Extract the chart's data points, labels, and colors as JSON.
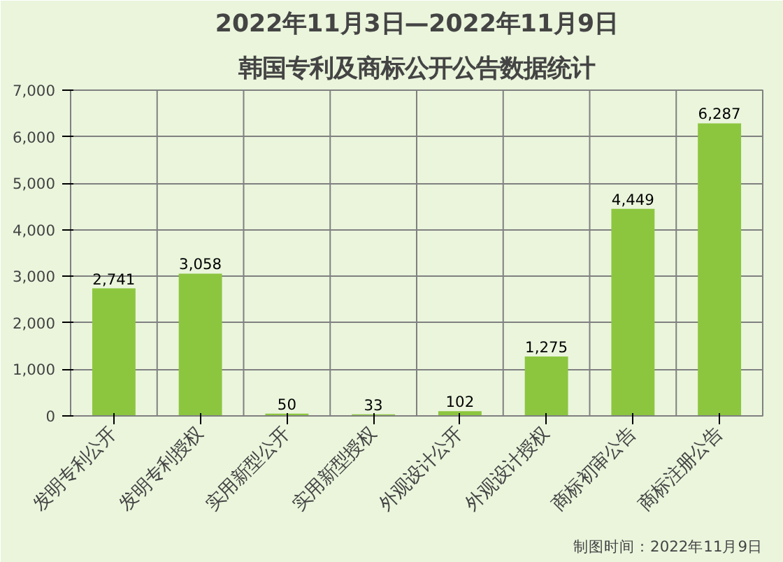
{
  "chart_data": {
    "type": "bar",
    "title": "2022年11月3日—2022年11月9日",
    "subtitle": "韩国专利及商标公开公告数据统计",
    "categories": [
      "发明专利公开",
      "发明专利授权",
      "实用新型公开",
      "实用新型授权",
      "外观设计公开",
      "外观设计授权",
      "商标初审公告",
      "商标注册公告"
    ],
    "values": [
      2741,
      3058,
      50,
      33,
      102,
      1275,
      4449,
      6287
    ],
    "color": "#8cc63f",
    "ylim": [
      0,
      7000
    ],
    "yticks": [
      {
        "value": 0,
        "label": "0"
      },
      {
        "value": 1000,
        "label": "1,000"
      },
      {
        "value": 2000,
        "label": "2,000"
      },
      {
        "value": 3000,
        "label": "3,000"
      },
      {
        "value": 4000,
        "label": "4,000"
      },
      {
        "value": 5000,
        "label": "5,000"
      },
      {
        "value": 6000,
        "label": "6,000"
      },
      {
        "value": 7000,
        "label": "7,000"
      }
    ],
    "grid": true,
    "value_labels": [
      "2,741",
      "3,058",
      "50",
      "33",
      "102",
      "1,275",
      "4,449",
      "6,287"
    ],
    "annotations": [
      "制图时间：2022年11月9日"
    ]
  }
}
